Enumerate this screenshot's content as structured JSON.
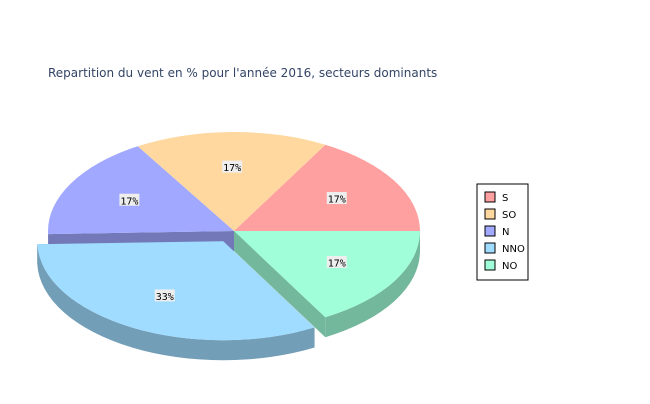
{
  "chart_data": {
    "type": "pie",
    "style": "3d",
    "title": "Repartition du vent en % pour l'année 2016, secteurs dominants",
    "legend_position": "right",
    "categories": [
      "S",
      "SO",
      "N",
      "NNO",
      "NO"
    ],
    "values": [
      17,
      17,
      17,
      33,
      17
    ],
    "value_labels": [
      "17%",
      "17%",
      "17%",
      "33%",
      "17%"
    ],
    "colors": [
      "#ffa0a0",
      "#ffd8a0",
      "#a0a8ff",
      "#a0dcff",
      "#a0ffd8"
    ],
    "exploded": [
      "NNO"
    ]
  }
}
